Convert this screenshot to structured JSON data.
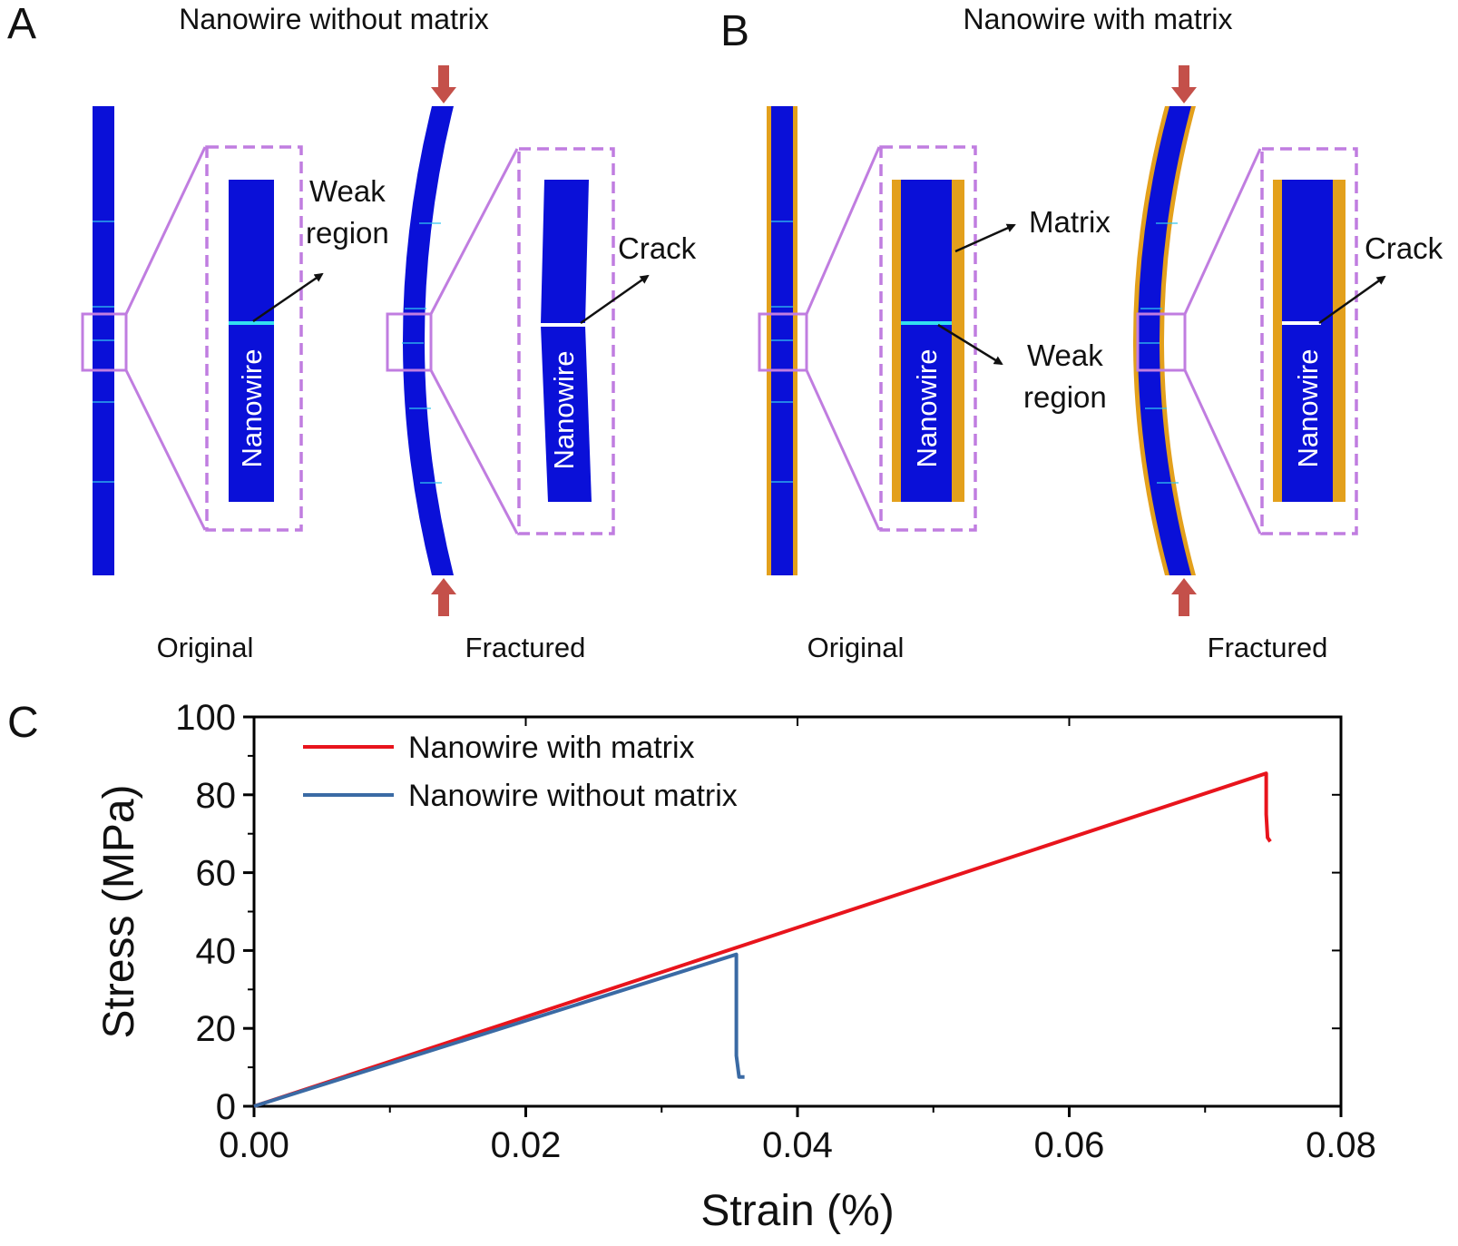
{
  "panels": {
    "a": {
      "letter": "A",
      "title": "Nanowire without matrix",
      "weak_region": [
        "Weak",
        "region"
      ],
      "crack": "Crack",
      "nanowire": "Nanowire",
      "original": "Original",
      "fractured": "Fractured"
    },
    "b": {
      "letter": "B",
      "title": "Nanowire with matrix",
      "matrix": "Matrix",
      "weak_region": [
        "Weak",
        "region"
      ],
      "crack": "Crack",
      "nanowire": "Nanowire",
      "original": "Original",
      "fractured": "Fractured"
    },
    "c": {
      "letter": "C"
    }
  },
  "colors": {
    "nanowire": "#0a10d8",
    "matrix": "#e3a01c",
    "zoom_box": "#c07de0",
    "weak_line": "#33e0f0",
    "force_arrow": "#c4504a"
  },
  "chart_data": {
    "type": "line",
    "xlabel": "Strain (%)",
    "ylabel": "Stress (MPa)",
    "xlim": [
      0,
      0.08
    ],
    "ylim": [
      0,
      100
    ],
    "xticks": [
      0,
      0.02,
      0.04,
      0.06,
      0.08
    ],
    "xtick_labels": [
      "0.00",
      "0.02",
      "0.04",
      "0.06",
      "0.08"
    ],
    "yticks": [
      0,
      20,
      40,
      60,
      80,
      100
    ],
    "ytick_labels": [
      "0",
      "20",
      "40",
      "60",
      "80",
      "100"
    ],
    "legend": "top-left",
    "grid": false,
    "series": [
      {
        "name": "Nanowire with matrix",
        "color": "#e8141c",
        "x": [
          0,
          0.0745,
          0.0745,
          0.0746,
          0.0748
        ],
        "y": [
          0,
          85.5,
          75,
          69,
          68
        ]
      },
      {
        "name": "Nanowire without matrix",
        "color": "#3a6aa4",
        "x": [
          0,
          0.0355,
          0.0355,
          0.0357,
          0.0361
        ],
        "y": [
          0,
          39,
          13,
          7.5,
          7.5
        ]
      }
    ]
  }
}
